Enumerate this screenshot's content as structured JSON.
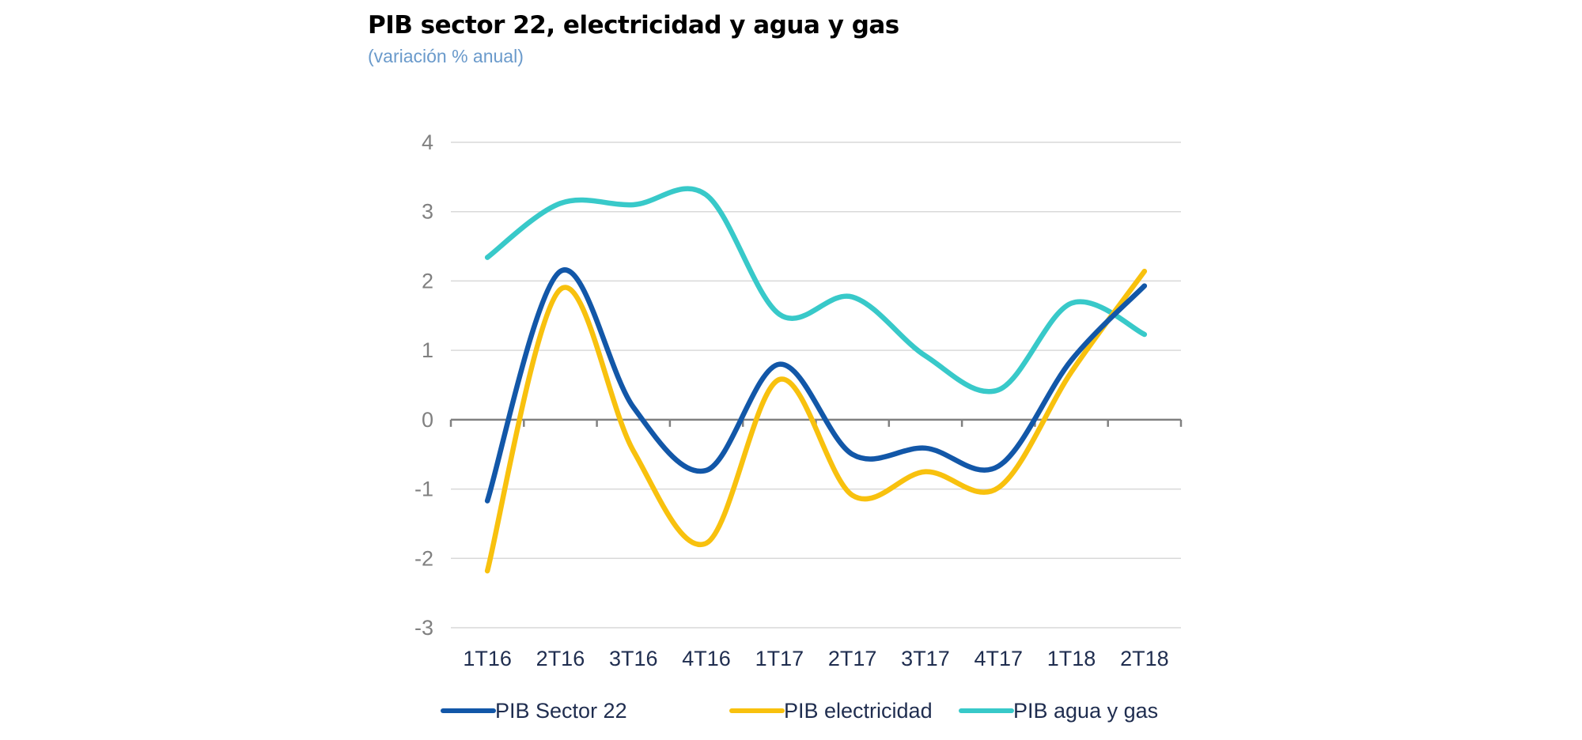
{
  "header": {
    "title": "PIB sector 22, electricidad y agua y gas",
    "subtitle": "(variación % anual)"
  },
  "chart_data": {
    "type": "line",
    "title": "PIB sector 22, electricidad y agua y gas",
    "subtitle": "(variación % anual)",
    "xlabel": "",
    "ylabel": "",
    "categories": [
      "1T16",
      "2T16",
      "3T16",
      "4T16",
      "1T17",
      "2T17",
      "3T17",
      "4T17",
      "1T18",
      "2T18"
    ],
    "ylim": [
      -3,
      4
    ],
    "yticks": [
      4,
      3,
      2,
      1,
      0,
      -1,
      -2,
      -3
    ],
    "grid": true,
    "smooth": true,
    "legend_position": "bottom",
    "series": [
      {
        "name": "PIB Sector 22",
        "color": "#1257a8",
        "values": [
          -1.17,
          2.14,
          0.18,
          -0.73,
          0.8,
          -0.5,
          -0.41,
          -0.67,
          0.86,
          1.93
        ]
      },
      {
        "name": "PIB electricidad",
        "color": "#f8c10e",
        "values": [
          -2.18,
          1.88,
          -0.45,
          -1.78,
          0.58,
          -1.09,
          -0.75,
          -0.98,
          0.69,
          2.14
        ]
      },
      {
        "name": "PIB agua y gas",
        "color": "#38c9c9",
        "values": [
          2.34,
          3.12,
          3.1,
          3.24,
          1.52,
          1.77,
          0.92,
          0.43,
          1.68,
          1.23
        ]
      }
    ]
  }
}
